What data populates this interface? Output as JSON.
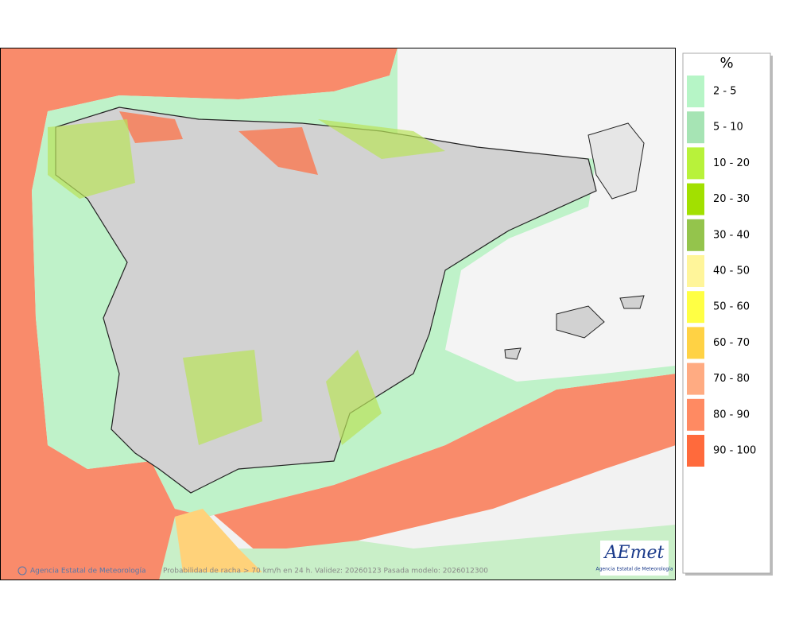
{
  "legend": {
    "title": "%",
    "items": [
      {
        "label": "2 - 5",
        "color": "#b6f5c6"
      },
      {
        "label": "5 - 10",
        "color": "#a6e4b4"
      },
      {
        "label": "10 - 20",
        "color": "#b8f23a"
      },
      {
        "label": "20 - 30",
        "color": "#a2e000"
      },
      {
        "label": "30 - 40",
        "color": "#94c44c"
      },
      {
        "label": "40 - 50",
        "color": "#fff59a"
      },
      {
        "label": "50 - 60",
        "color": "#ffff44"
      },
      {
        "label": "60 - 70",
        "color": "#ffd244"
      },
      {
        "label": "70 - 80",
        "color": "#ffab82"
      },
      {
        "label": "80 - 90",
        "color": "#ff8a62"
      },
      {
        "label": "90 - 100",
        "color": "#ff6a3c"
      }
    ]
  },
  "footer": {
    "credit": "Agencia Estatal de Meteorología",
    "caption": "Probabilidad de racha > 70 km/h en 24 h. Validez: 20260123 Pasada modelo: 2026012300"
  },
  "logo": {
    "name": "AEmet",
    "subtitle": "Agencia Estatal de Meteorología"
  }
}
